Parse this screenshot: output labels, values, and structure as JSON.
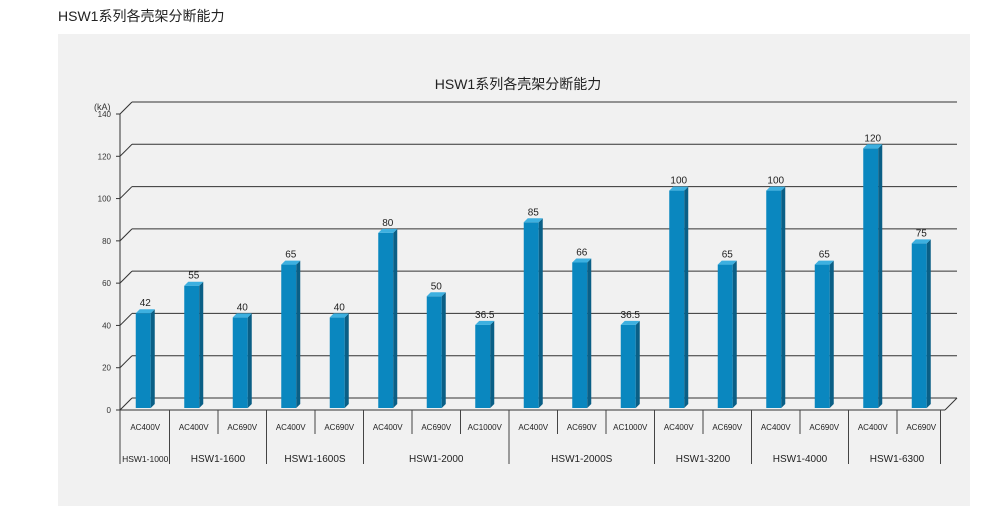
{
  "page": {
    "heading": "HSW1系列各壳架分断能力"
  },
  "chart_data": {
    "type": "bar",
    "title": "HSW1系列各壳架分断能力",
    "ylabel": "(kA)",
    "xlabel": "",
    "ylim": [
      0,
      140
    ],
    "yticks": [
      0,
      20,
      40,
      60,
      80,
      100,
      120,
      140
    ],
    "grid": true,
    "bar_color": "#0a87bf",
    "groups": [
      {
        "name": "HSW1-1000",
        "bars": [
          {
            "voltage": "AC400V",
            "value": 42
          }
        ]
      },
      {
        "name": "HSW1-1600",
        "bars": [
          {
            "voltage": "AC400V",
            "value": 55
          },
          {
            "voltage": "AC690V",
            "value": 40
          }
        ]
      },
      {
        "name": "HSW1-1600S",
        "bars": [
          {
            "voltage": "AC400V",
            "value": 65
          },
          {
            "voltage": "AC690V",
            "value": 40
          }
        ]
      },
      {
        "name": "HSW1-2000",
        "bars": [
          {
            "voltage": "AC400V",
            "value": 80
          },
          {
            "voltage": "AC690V",
            "value": 50
          },
          {
            "voltage": "AC1000V",
            "value": 36.5
          }
        ]
      },
      {
        "name": "HSW1-2000S",
        "bars": [
          {
            "voltage": "AC400V",
            "value": 85
          },
          {
            "voltage": "AC690V",
            "value": 66
          },
          {
            "voltage": "AC1000V",
            "value": 36.5
          }
        ]
      },
      {
        "name": "HSW1-3200",
        "bars": [
          {
            "voltage": "AC400V",
            "value": 100
          },
          {
            "voltage": "AC690V",
            "value": 65
          }
        ]
      },
      {
        "name": "HSW1-4000",
        "bars": [
          {
            "voltage": "AC400V",
            "value": 100
          },
          {
            "voltage": "AC690V",
            "value": 65
          }
        ]
      },
      {
        "name": "HSW1-6300",
        "bars": [
          {
            "voltage": "AC400V",
            "value": 120
          },
          {
            "voltage": "AC690V",
            "value": 75
          }
        ]
      }
    ]
  }
}
